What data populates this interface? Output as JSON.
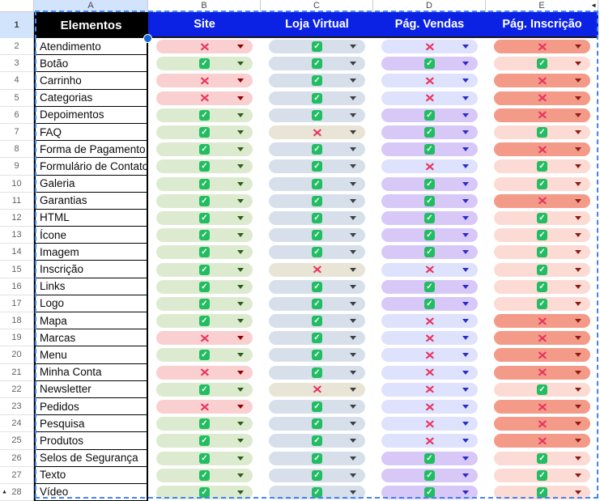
{
  "sheet_corner": "",
  "column_letters": [
    "A",
    "B",
    "C",
    "D",
    "E"
  ],
  "header": {
    "row_number": "1",
    "elements_title": "Elementos",
    "columns": [
      {
        "key": "site",
        "label": "Site"
      },
      {
        "key": "loja",
        "label": "Loja Virtual"
      },
      {
        "key": "vendas",
        "label": "Pág. Vendas"
      },
      {
        "key": "inscricao",
        "label": "Pág. Inscrição"
      }
    ]
  },
  "icons": {
    "check": "checkmark-icon",
    "x": "x-icon",
    "dropdown": "dropdown-arrow-icon",
    "hidden_columns": "◄",
    "hidden_rows": "▲",
    "check_glyph": "✓",
    "x_glyph": "✕"
  },
  "colors": {
    "header_fill": "#0b22e4",
    "elements_header_fill": "#000000",
    "selected_header_fill": "#d2e3fc",
    "selection_ants": "#4285f4",
    "check_icon_green": "#22bd62",
    "x_glyph_crimson": "#e8335e",
    "site_check": "#dcebcf",
    "site_x": "#f9cfd0",
    "loja_check": "#d7e0ea",
    "loja_x": "#e8e4d6",
    "vendas_check": "#d8c8f8",
    "vendas_x": "#dee2fc",
    "inscricao_check": "#fcdbd4",
    "inscricao_x": "#f49a88"
  },
  "rows": [
    {
      "num": "2",
      "label": "Atendimento",
      "site": "x",
      "loja": "check",
      "vendas": "x",
      "inscricao": "x"
    },
    {
      "num": "3",
      "label": "Botão",
      "site": "check",
      "loja": "check",
      "vendas": "check",
      "inscricao": "check"
    },
    {
      "num": "4",
      "label": "Carrinho",
      "site": "x",
      "loja": "check",
      "vendas": "x",
      "inscricao": "x"
    },
    {
      "num": "5",
      "label": "Categorias",
      "site": "x",
      "loja": "check",
      "vendas": "x",
      "inscricao": "x"
    },
    {
      "num": "6",
      "label": "Depoimentos",
      "site": "check",
      "loja": "check",
      "vendas": "check",
      "inscricao": "x"
    },
    {
      "num": "7",
      "label": "FAQ",
      "site": "check",
      "loja": "x",
      "vendas": "check",
      "inscricao": "check"
    },
    {
      "num": "8",
      "label": "Forma de Pagamento",
      "site": "check",
      "loja": "check",
      "vendas": "check",
      "inscricao": "x"
    },
    {
      "num": "9",
      "label": "Formulário de Contato",
      "site": "check",
      "loja": "check",
      "vendas": "x",
      "inscricao": "check"
    },
    {
      "num": "10",
      "label": "Galeria",
      "site": "check",
      "loja": "check",
      "vendas": "check",
      "inscricao": "check"
    },
    {
      "num": "11",
      "label": "Garantias",
      "site": "check",
      "loja": "check",
      "vendas": "check",
      "inscricao": "x"
    },
    {
      "num": "12",
      "label": "HTML",
      "site": "check",
      "loja": "check",
      "vendas": "check",
      "inscricao": "check"
    },
    {
      "num": "13",
      "label": "Ícone",
      "site": "check",
      "loja": "check",
      "vendas": "check",
      "inscricao": "check"
    },
    {
      "num": "14",
      "label": "Imagem",
      "site": "check",
      "loja": "check",
      "vendas": "check",
      "inscricao": "check"
    },
    {
      "num": "15",
      "label": "Inscrição",
      "site": "check",
      "loja": "x",
      "vendas": "x",
      "inscricao": "check"
    },
    {
      "num": "16",
      "label": "Links",
      "site": "check",
      "loja": "check",
      "vendas": "check",
      "inscricao": "check"
    },
    {
      "num": "17",
      "label": "Logo",
      "site": "check",
      "loja": "check",
      "vendas": "check",
      "inscricao": "check"
    },
    {
      "num": "18",
      "label": "Mapa",
      "site": "check",
      "loja": "check",
      "vendas": "x",
      "inscricao": "x"
    },
    {
      "num": "19",
      "label": "Marcas",
      "site": "x",
      "loja": "check",
      "vendas": "x",
      "inscricao": "x"
    },
    {
      "num": "20",
      "label": "Menu",
      "site": "check",
      "loja": "check",
      "vendas": "x",
      "inscricao": "x"
    },
    {
      "num": "21",
      "label": "Minha Conta",
      "site": "x",
      "loja": "check",
      "vendas": "x",
      "inscricao": "x"
    },
    {
      "num": "22",
      "label": "Newsletter",
      "site": "check",
      "loja": "x",
      "vendas": "x",
      "inscricao": "check"
    },
    {
      "num": "23",
      "label": "Pedidos",
      "site": "x",
      "loja": "check",
      "vendas": "x",
      "inscricao": "x"
    },
    {
      "num": "24",
      "label": "Pesquisa",
      "site": "check",
      "loja": "check",
      "vendas": "x",
      "inscricao": "x"
    },
    {
      "num": "25",
      "label": "Produtos",
      "site": "check",
      "loja": "check",
      "vendas": "x",
      "inscricao": "x"
    },
    {
      "num": "26",
      "label": "Selos de Segurança",
      "site": "check",
      "loja": "check",
      "vendas": "check",
      "inscricao": "check"
    },
    {
      "num": "27",
      "label": "Texto",
      "site": "check",
      "loja": "check",
      "vendas": "check",
      "inscricao": "check"
    },
    {
      "num": "28",
      "label": "Vídeo",
      "site": "check",
      "loja": "check",
      "vendas": "check",
      "inscricao": "check",
      "hidden_rows_below": true
    }
  ]
}
